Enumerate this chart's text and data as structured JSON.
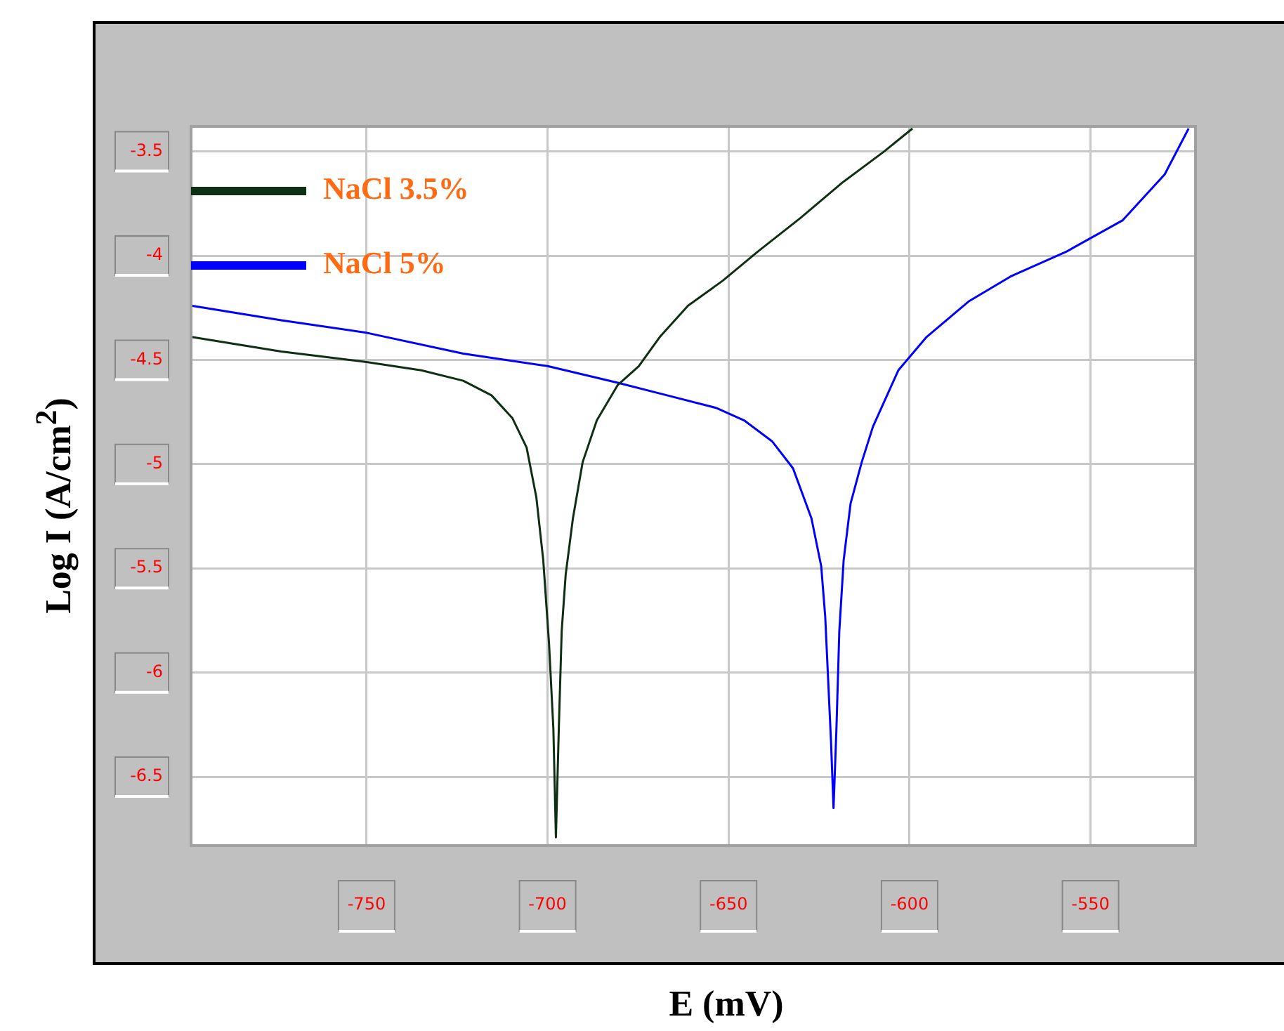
{
  "chart_data": {
    "type": "line",
    "xlabel": "E (mV)",
    "ylabel": "Log I (A/cm$^{2}$)",
    "xlim": [
      -798.5,
      -521
    ],
    "xticks": [
      -750,
      -700,
      -650,
      -600,
      -550
    ],
    "ylim": [
      -6.83,
      -3.38
    ],
    "yticks": [
      -3.5,
      -4,
      -4.5,
      -5,
      -5.5,
      -6,
      -6.5
    ],
    "grid": true,
    "legend": "top left",
    "marker": "none",
    "line_style": "solid",
    "series": [
      {
        "name": "NaCl 3.5%",
        "color": "#0f2f12",
        "x": [
          -798.4,
          -773.6,
          -750,
          -734.9,
          -723.3,
          -715.5,
          -709.7,
          -705.8,
          -703.1,
          -701.2,
          -699.6,
          -698.4,
          -697.7,
          -696.9,
          -696.1,
          -695,
          -693,
          -690.3,
          -686.4,
          -680.6,
          -674.8,
          -669,
          -661.2,
          -651.6,
          -641.9,
          -630.2,
          -618.6,
          -607,
          -599.2
        ],
        "values": [
          -4.39,
          -4.46,
          -4.51,
          -4.55,
          -4.6,
          -4.67,
          -4.78,
          -4.92,
          -5.16,
          -5.46,
          -5.86,
          -6.27,
          -6.79,
          -6.27,
          -5.8,
          -5.53,
          -5.26,
          -4.99,
          -4.79,
          -4.62,
          -4.53,
          -4.39,
          -4.24,
          -4.12,
          -3.98,
          -3.82,
          -3.65,
          -3.5,
          -3.39
        ]
      },
      {
        "name": "NaCl 5%",
        "color": "#0000ff",
        "x": [
          -798.4,
          -773.6,
          -750,
          -723.3,
          -700,
          -680.6,
          -667,
          -653.5,
          -645.7,
          -638,
          -632.2,
          -627.1,
          -624.4,
          -623.3,
          -622.5,
          -621.7,
          -621,
          -620.2,
          -619.4,
          -618.2,
          -616.3,
          -613.2,
          -610.1,
          -603.1,
          -595.3,
          -583.7,
          -572.1,
          -556.6,
          -541.1,
          -529.5,
          -522.9
        ],
        "values": [
          -4.24,
          -4.31,
          -4.37,
          -4.47,
          -4.53,
          -4.61,
          -4.67,
          -4.73,
          -4.79,
          -4.89,
          -5.02,
          -5.26,
          -5.49,
          -5.73,
          -6.03,
          -6.33,
          -6.65,
          -6.27,
          -5.8,
          -5.46,
          -5.19,
          -4.99,
          -4.82,
          -4.55,
          -4.39,
          -4.22,
          -4.1,
          -3.98,
          -3.83,
          -3.61,
          -3.39
        ]
      }
    ]
  }
}
